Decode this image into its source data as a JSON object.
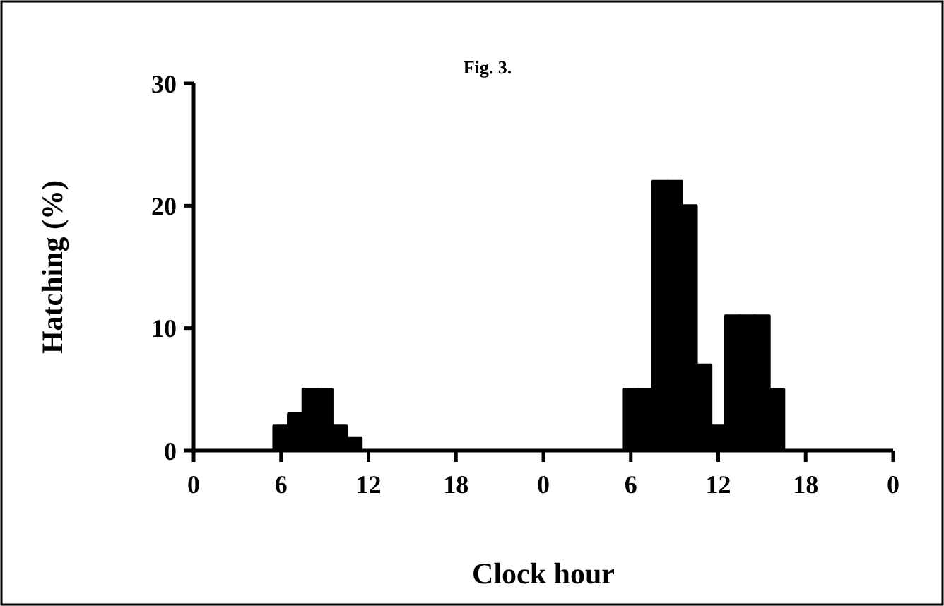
{
  "chart_data": {
    "type": "bar",
    "title": "Fig. 3.",
    "xlabel": "Clock hour",
    "ylabel": "Hatching (%)",
    "categories": [
      "0",
      null,
      null,
      null,
      null,
      null,
      "6",
      null,
      null,
      null,
      null,
      null,
      "12",
      null,
      null,
      null,
      null,
      null,
      "18",
      null,
      null,
      null,
      null,
      null,
      "0",
      null,
      null,
      null,
      null,
      null,
      "6",
      null,
      null,
      null,
      null,
      null,
      "12",
      null,
      null,
      null,
      null,
      null,
      "18",
      null,
      null,
      null,
      null,
      null,
      "0"
    ],
    "values": [
      0,
      0,
      0,
      0,
      0,
      0,
      2,
      3,
      5,
      5,
      2,
      1,
      0,
      0,
      0,
      0,
      0,
      0,
      0,
      0,
      0,
      0,
      0,
      0,
      0,
      0,
      0,
      0,
      0,
      0,
      5,
      5,
      22,
      22,
      20,
      7,
      2,
      11,
      11,
      11,
      5,
      0,
      0,
      0,
      0,
      0,
      0,
      0,
      0
    ],
    "color": "#000000",
    "ylim": [
      0,
      30
    ],
    "yticks": [
      0,
      10,
      20,
      30
    ],
    "grid": false
  }
}
